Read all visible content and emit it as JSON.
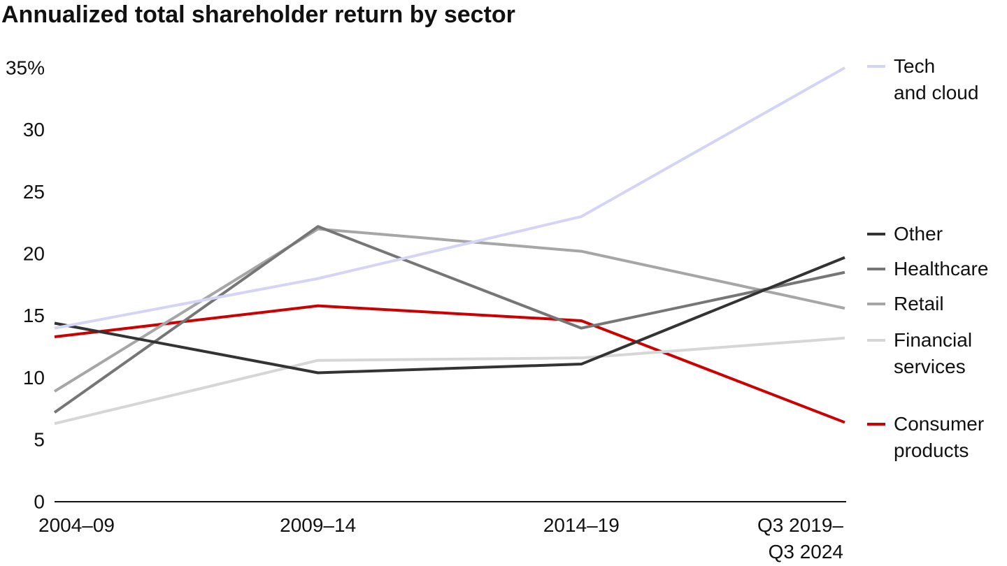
{
  "chart_data": {
    "type": "line",
    "title": "Annualized total shareholder return by sector",
    "categories": [
      "2004–09",
      "2009–14",
      "2014–19",
      "Q3 2019–\nQ3 2024"
    ],
    "series": [
      {
        "name": "Tech\nand cloud",
        "color": "#d4d4f7",
        "values": [
          14.0,
          18.0,
          23.0,
          35.0
        ]
      },
      {
        "name": "Other",
        "color": "#333333",
        "values": [
          14.4,
          10.4,
          11.1,
          19.7
        ]
      },
      {
        "name": "Healthcare",
        "color": "#767676",
        "values": [
          7.2,
          22.2,
          14.0,
          18.5
        ]
      },
      {
        "name": "Retail",
        "color": "#a6a6a6",
        "values": [
          8.9,
          22.0,
          20.2,
          15.6
        ]
      },
      {
        "name": "Financial\nservices",
        "color": "#d6d6d6",
        "values": [
          6.3,
          11.4,
          11.6,
          13.2
        ]
      },
      {
        "name": "Consumer\nproducts",
        "color": "#cc0000",
        "values": [
          13.3,
          15.8,
          14.6,
          6.4
        ]
      }
    ],
    "ylim": [
      0,
      35
    ],
    "yticks": [
      0,
      5,
      10,
      15,
      20,
      25,
      30,
      {
        "value": 35,
        "label": "35%"
      }
    ],
    "grid": false
  }
}
